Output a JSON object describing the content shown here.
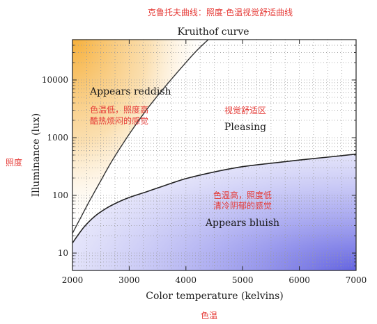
{
  "header": {
    "title_cn": "克鲁托夫曲线：照度-色温视觉舒适曲线"
  },
  "side_labels": {
    "y_cn": "照度",
    "x_cn": "色温"
  },
  "annotations": {
    "reddish": "Appears reddish",
    "reddish_cn_line1": "色温低，照度高",
    "reddish_cn_line2": "酷热烦闷的感觉",
    "pleasing": "Pleasing",
    "pleasing_cn": "视觉舒适区",
    "bluish": "Appears bluish",
    "bluish_cn_line1": "色温高，照度低",
    "bluish_cn_line2": "清冷阴郁的感觉"
  },
  "colors": {
    "reddish_region": "#f5a623",
    "bluish_region": "#6666e0",
    "curve": "#333333",
    "annotation_cn": "#e53935",
    "grid_dots": "#9a9a9a"
  },
  "chart_data": {
    "type": "area",
    "title": "Kruithof curve",
    "xlabel": "Color temperature (kelvins)",
    "ylabel": "Illuminance (lux)",
    "xlim": [
      2000,
      7000
    ],
    "ylim": [
      5,
      50000
    ],
    "yscale": "log",
    "grid": "dotted",
    "x_ticks": [
      "2000",
      "3000",
      "4000",
      "5000",
      "6000",
      "7000"
    ],
    "y_ticks": [
      "10",
      "100",
      "1000",
      "10000"
    ],
    "y_tick_values": [
      10,
      100,
      1000,
      10000
    ],
    "x_tick_values": [
      2000,
      3000,
      4000,
      5000,
      6000,
      7000
    ],
    "series": [
      {
        "x": [
          2000,
          2150,
          2300,
          2500,
          2700,
          3000,
          3300,
          3600,
          3900,
          4200,
          4500
        ],
        "y": [
          22,
          42,
          80,
          180,
          400,
          1150,
          3000,
          7000,
          15500,
          33000,
          62000
        ]
      },
      {
        "x": [
          2000,
          2200,
          2400,
          2600,
          2800,
          3000,
          3300,
          3600,
          4000,
          4500,
          5000,
          5500,
          6000,
          6500,
          7000
        ],
        "y": [
          15,
          28,
          44,
          60,
          76,
          92,
          115,
          145,
          195,
          255,
          315,
          360,
          410,
          460,
          520
        ]
      }
    ]
  }
}
